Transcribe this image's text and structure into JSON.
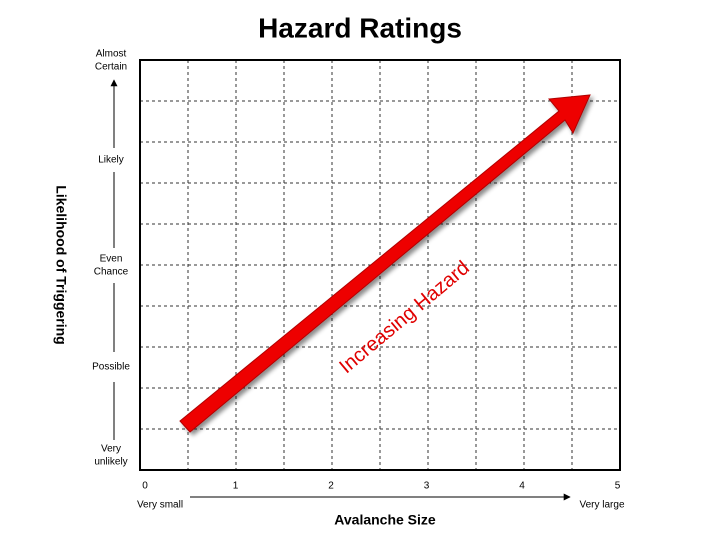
{
  "title": "Hazard Ratings",
  "x_axis": {
    "label": "Avalanche Size",
    "ticks": [
      0,
      1,
      2,
      3,
      4,
      5
    ],
    "start_label": "Very small",
    "end_label": "Very large"
  },
  "y_axis": {
    "label": "Likelihood of Triggering",
    "levels": [
      "Very unlikely",
      "Possible",
      "Even Chance",
      "Likely",
      "Almost Certain"
    ]
  },
  "arrow_label": "Increasing Hazard"
}
